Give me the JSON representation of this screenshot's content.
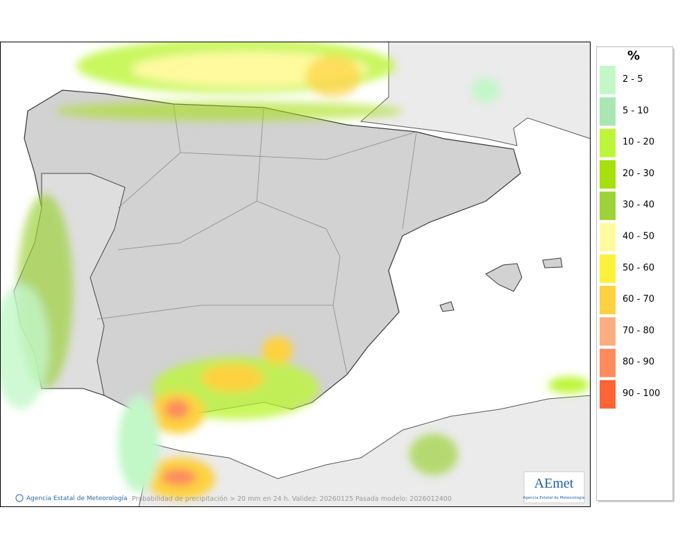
{
  "footer": {
    "agency": "Agencia Estatal de Meteorología",
    "caption": "Probabilidad de precipitación > 20 mm en 24 h. Validez: 20260125 Pasada modelo: 2026012400"
  },
  "logo": {
    "name": "AEmet",
    "subtitle": "Agencia Estatal de Meteorología"
  },
  "legend": {
    "title": "%",
    "items": [
      {
        "label": "2 - 5",
        "color": "#c2f7c8"
      },
      {
        "label": "5 - 10",
        "color": "#a9e6b4"
      },
      {
        "label": "10 - 20",
        "color": "#bdf53a"
      },
      {
        "label": "20 - 30",
        "color": "#a6e00d"
      },
      {
        "label": "30 - 40",
        "color": "#9ed23a"
      },
      {
        "label": "40 - 50",
        "color": "#fffa9e"
      },
      {
        "label": "50 - 60",
        "color": "#fcf23c"
      },
      {
        "label": "60 - 70",
        "color": "#fdd13f"
      },
      {
        "label": "70 - 80",
        "color": "#fcae80"
      },
      {
        "label": "80 - 90",
        "color": "#fd8b5d"
      },
      {
        "label": "90 - 100",
        "color": "#fe6534"
      }
    ]
  }
}
